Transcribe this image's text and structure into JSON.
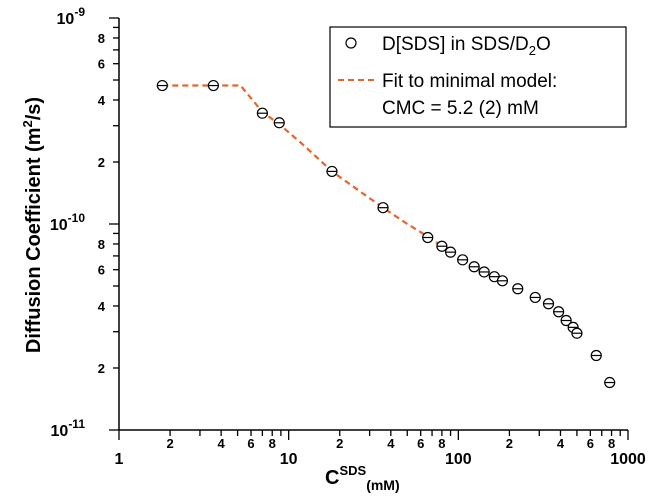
{
  "chart_data": {
    "type": "scatter",
    "x_scale": "log",
    "y_scale": "log",
    "xlim": [
      1,
      1000
    ],
    "ylim": [
      1e-11,
      1e-09
    ],
    "xlabel": {
      "base": "C",
      "superscript": "SDS",
      "subscript": "(mM)"
    },
    "ylabel": {
      "base": "Diffusion Coefficient (m",
      "superscript": "2",
      "suffix": "/s)"
    },
    "x_major_ticks": [
      {
        "value": 1,
        "label": "1"
      },
      {
        "value": 10,
        "label": "10"
      },
      {
        "value": 100,
        "label": "100"
      },
      {
        "value": 1000,
        "label": "1000"
      }
    ],
    "x_minor_labels": [
      {
        "value": 2,
        "label": "2"
      },
      {
        "value": 4,
        "label": "4"
      },
      {
        "value": 6,
        "label": "6"
      },
      {
        "value": 8,
        "label": "8"
      },
      {
        "value": 20,
        "label": "2"
      },
      {
        "value": 40,
        "label": "4"
      },
      {
        "value": 60,
        "label": "6"
      },
      {
        "value": 80,
        "label": "8"
      },
      {
        "value": 200,
        "label": "2"
      },
      {
        "value": 400,
        "label": "4"
      },
      {
        "value": 600,
        "label": "6"
      },
      {
        "value": 800,
        "label": "8"
      }
    ],
    "y_major_ticks": [
      {
        "value": 1e-11,
        "base": "10",
        "exponent": "-11"
      },
      {
        "value": 1e-10,
        "base": "10",
        "exponent": "-10"
      },
      {
        "value": 1e-09,
        "base": "10",
        "exponent": "-9"
      }
    ],
    "y_minor_labels": [
      {
        "value": 2e-11,
        "label": "2"
      },
      {
        "value": 4e-11,
        "label": "4"
      },
      {
        "value": 6e-11,
        "label": "6"
      },
      {
        "value": 8e-11,
        "label": "8"
      },
      {
        "value": 2e-10,
        "label": "2"
      },
      {
        "value": 4e-10,
        "label": "4"
      },
      {
        "value": 6e-10,
        "label": "6"
      },
      {
        "value": 8e-10,
        "label": "8"
      }
    ],
    "series": [
      {
        "name": "D[SDS] in SDS/D2O",
        "marker": "open-circle",
        "color": "#000000",
        "points": [
          {
            "x": 1.8,
            "y": 4.7e-10
          },
          {
            "x": 3.6,
            "y": 4.7e-10
          },
          {
            "x": 7.0,
            "y": 3.45e-10
          },
          {
            "x": 8.8,
            "y": 3.1e-10
          },
          {
            "x": 18,
            "y": 1.8e-10
          },
          {
            "x": 36,
            "y": 1.2e-10
          },
          {
            "x": 66,
            "y": 8.6e-11
          },
          {
            "x": 80,
            "y": 7.8e-11
          },
          {
            "x": 90,
            "y": 7.3e-11
          },
          {
            "x": 106,
            "y": 6.7e-11
          },
          {
            "x": 124,
            "y": 6.2e-11
          },
          {
            "x": 142,
            "y": 5.85e-11
          },
          {
            "x": 163,
            "y": 5.55e-11
          },
          {
            "x": 182,
            "y": 5.3e-11
          },
          {
            "x": 224,
            "y": 4.85e-11
          },
          {
            "x": 284,
            "y": 4.4e-11
          },
          {
            "x": 340,
            "y": 4.1e-11
          },
          {
            "x": 390,
            "y": 3.75e-11
          },
          {
            "x": 432,
            "y": 3.4e-11
          },
          {
            "x": 475,
            "y": 3.15e-11
          },
          {
            "x": 500,
            "y": 2.95e-11
          },
          {
            "x": 650,
            "y": 2.3e-11
          },
          {
            "x": 780,
            "y": 1.7e-11
          }
        ]
      },
      {
        "name": "Fit to minimal model:",
        "name_line2": "CMC = 5.2 (2) mM",
        "style": "dashed",
        "color": "#e8642a",
        "points": [
          {
            "x": 1.8,
            "y": 4.7e-10
          },
          {
            "x": 3.0,
            "y": 4.7e-10
          },
          {
            "x": 4.5,
            "y": 4.7e-10
          },
          {
            "x": 5.2,
            "y": 4.7e-10
          },
          {
            "x": 7.0,
            "y": 3.5e-10
          },
          {
            "x": 8.8,
            "y": 3.05e-10
          },
          {
            "x": 12,
            "y": 2.45e-10
          },
          {
            "x": 18,
            "y": 1.8e-10
          },
          {
            "x": 26,
            "y": 1.45e-10
          },
          {
            "x": 36,
            "y": 1.2e-10
          },
          {
            "x": 50,
            "y": 1e-10
          },
          {
            "x": 66,
            "y": 8.7e-11
          },
          {
            "x": 80,
            "y": 7.8e-11
          },
          {
            "x": 92,
            "y": 7.3e-11
          }
        ]
      }
    ],
    "legend": {
      "position": "top-right",
      "entries": [
        {
          "marker": "open-circle",
          "text": "D[SDS] in SDS/D",
          "subscript": "2",
          "suffix": "O"
        },
        {
          "marker": "dashed-line",
          "line1": "Fit to minimal model:",
          "line2": "CMC = 5.2 (2) mM"
        }
      ]
    }
  }
}
